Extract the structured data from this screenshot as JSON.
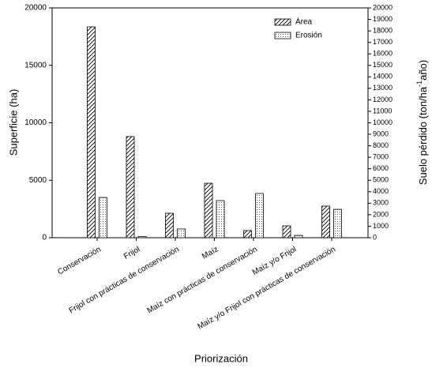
{
  "chart_data": {
    "type": "bar",
    "xlabel": "Priorización",
    "ylabel": "Superficie (ha)",
    "y2label": [
      "Suelo pérdido (ton/ha",
      "-1",
      "año)"
    ],
    "categories": [
      "Conservación",
      "Frijol",
      "Frijol con prácticas de conservación",
      "Maíz",
      "Maíz con prácticas de conservación",
      "Maíz y/o Frijol",
      "Maíz y/o Frijol con prácticas de conservación"
    ],
    "series": [
      {
        "name": "Área",
        "color": "#000000",
        "pattern": "hatch",
        "values": [
          18350,
          8800,
          2130,
          4740,
          620,
          1030,
          2750
        ]
      },
      {
        "name": "Erosión",
        "color": "#000000",
        "pattern": "dots",
        "axis": "y2",
        "values": [
          3500,
          100,
          760,
          3230,
          3850,
          200,
          2470
        ]
      }
    ],
    "ylim": [
      0,
      20000
    ],
    "yticks": [
      0,
      5000,
      10000,
      15000,
      20000
    ],
    "y2lim": [
      0,
      20000
    ],
    "y2ticks": [
      0,
      1000,
      2000,
      3000,
      4000,
      5000,
      6000,
      7000,
      8000,
      9000,
      10000,
      11000,
      12000,
      13000,
      14000,
      15000,
      16000,
      17000,
      18000,
      19000,
      20000
    ],
    "legend": "upper right",
    "grid": false
  }
}
